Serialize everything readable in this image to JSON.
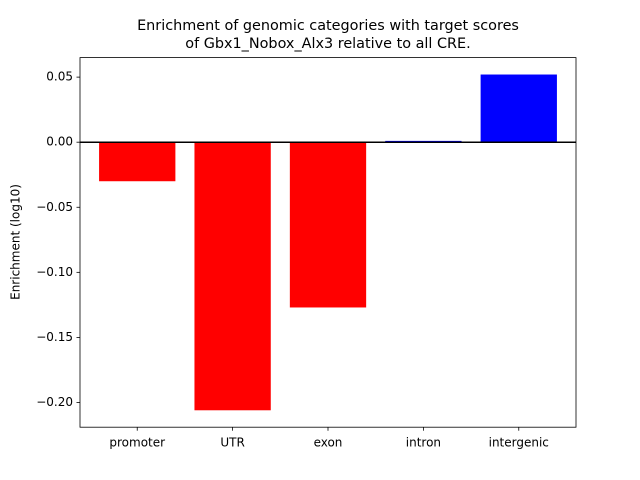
{
  "chart_data": {
    "type": "bar",
    "title": [
      "Enrichment of genomic categories with target scores",
      "of Gbx1_Nobox_Alx3 relative to all CRE."
    ],
    "y_label": "Enrichment (log10)",
    "categories": [
      "promoter",
      "UTR",
      "exon",
      "intron",
      "intergenic"
    ],
    "values": [
      -0.03,
      -0.206,
      -0.127,
      0.001,
      0.052
    ],
    "colors": [
      "#ff0000",
      "#ff0000",
      "#ff0000",
      "#0000ff",
      "#0000ff"
    ],
    "ylim": [
      -0.219,
      0.065
    ],
    "yticks": [
      {
        "value": -0.2,
        "label": "−0.20"
      },
      {
        "value": -0.15,
        "label": "−0.15"
      },
      {
        "value": -0.1,
        "label": "−0.10"
      },
      {
        "value": -0.05,
        "label": "−0.05"
      },
      {
        "value": 0,
        "label": "0.00"
      },
      0.05
    ],
    "grid": false
  }
}
